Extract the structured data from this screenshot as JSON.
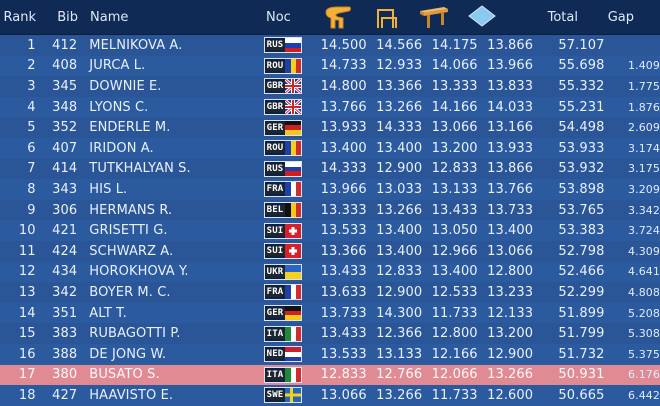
{
  "header": {
    "rank": "Rank",
    "bib": "Bib",
    "name": "Name",
    "noc": "Noc",
    "total": "Total",
    "gap": "Gap",
    "apparatus": [
      {
        "icon": "vault-icon"
      },
      {
        "icon": "uneven-bars-icon"
      },
      {
        "icon": "balance-beam-icon"
      },
      {
        "icon": "floor-exercise-icon"
      }
    ]
  },
  "rows": [
    {
      "rank": "1",
      "bib": "412",
      "name": "MELNIKOVA A.",
      "noc": "RUS",
      "s1": "14.500",
      "s2": "14.566",
      "s3": "14.175",
      "s4": "13.866",
      "total": "57.107",
      "gap": "",
      "flag": {
        "dir": "h",
        "colors": [
          "#ffffff",
          "#1c3fb0",
          "#d31c1c"
        ]
      }
    },
    {
      "rank": "2",
      "bib": "408",
      "name": "JURCA L.",
      "noc": "ROU",
      "s1": "14.733",
      "s2": "12.933",
      "s3": "14.066",
      "s4": "13.966",
      "total": "55.698",
      "gap": "1.409",
      "flag": {
        "dir": "v",
        "colors": [
          "#1f3fa8",
          "#f4d21b",
          "#d12c2c"
        ]
      }
    },
    {
      "rank": "3",
      "bib": "345",
      "name": "DOWNIE E.",
      "noc": "GBR",
      "s1": "14.800",
      "s2": "13.366",
      "s3": "13.333",
      "s4": "13.833",
      "total": "55.332",
      "gap": "1.775",
      "flag": {
        "dir": "uk",
        "colors": [
          "#1c3e8f",
          "#ffffff",
          "#d4222a"
        ]
      }
    },
    {
      "rank": "4",
      "bib": "348",
      "name": "LYONS C.",
      "noc": "GBR",
      "s1": "13.766",
      "s2": "13.266",
      "s3": "14.166",
      "s4": "14.033",
      "total": "55.231",
      "gap": "1.876",
      "flag": {
        "dir": "uk",
        "colors": [
          "#1c3e8f",
          "#ffffff",
          "#d4222a"
        ]
      }
    },
    {
      "rank": "5",
      "bib": "352",
      "name": "ENDERLE M.",
      "noc": "GER",
      "s1": "13.933",
      "s2": "14.333",
      "s3": "13.066",
      "s4": "13.166",
      "total": "54.498",
      "gap": "2.609",
      "flag": {
        "dir": "h",
        "colors": [
          "#111111",
          "#d21f1f",
          "#f3c915"
        ]
      }
    },
    {
      "rank": "6",
      "bib": "407",
      "name": "IRIDON A.",
      "noc": "ROU",
      "s1": "13.400",
      "s2": "13.400",
      "s3": "13.200",
      "s4": "13.933",
      "total": "53.933",
      "gap": "3.174",
      "flag": {
        "dir": "v",
        "colors": [
          "#1f3fa8",
          "#f4d21b",
          "#d12c2c"
        ]
      }
    },
    {
      "rank": "7",
      "bib": "414",
      "name": "TUTKHALYAN S.",
      "noc": "RUS",
      "s1": "14.333",
      "s2": "12.900",
      "s3": "12.833",
      "s4": "13.866",
      "total": "53.932",
      "gap": "3.175",
      "flag": {
        "dir": "h",
        "colors": [
          "#ffffff",
          "#1c3fb0",
          "#d31c1c"
        ]
      }
    },
    {
      "rank": "8",
      "bib": "343",
      "name": "HIS L.",
      "noc": "FRA",
      "s1": "13.966",
      "s2": "13.033",
      "s3": "13.133",
      "s4": "13.766",
      "total": "53.898",
      "gap": "3.209",
      "flag": {
        "dir": "v",
        "colors": [
          "#1f3fa8",
          "#ffffff",
          "#d12c2c"
        ]
      }
    },
    {
      "rank": "9",
      "bib": "306",
      "name": "HERMANS R.",
      "noc": "BEL",
      "s1": "13.333",
      "s2": "13.266",
      "s3": "13.433",
      "s4": "13.733",
      "total": "53.765",
      "gap": "3.342",
      "flag": {
        "dir": "v",
        "colors": [
          "#111111",
          "#f3c915",
          "#d12c2c"
        ]
      }
    },
    {
      "rank": "10",
      "bib": "421",
      "name": "GRISETTI G.",
      "noc": "SUI",
      "s1": "13.533",
      "s2": "13.400",
      "s3": "13.050",
      "s4": "13.400",
      "total": "53.383",
      "gap": "3.724",
      "flag": {
        "dir": "sui",
        "colors": [
          "#d6202a",
          "#ffffff"
        ]
      }
    },
    {
      "rank": "11",
      "bib": "424",
      "name": "SCHWARZ A.",
      "noc": "SUI",
      "s1": "13.366",
      "s2": "13.400",
      "s3": "12.966",
      "s4": "13.066",
      "total": "52.798",
      "gap": "4.309",
      "flag": {
        "dir": "sui",
        "colors": [
          "#d6202a",
          "#ffffff"
        ]
      }
    },
    {
      "rank": "12",
      "bib": "434",
      "name": "HOROKHOVA Y.",
      "noc": "UKR",
      "s1": "13.433",
      "s2": "12.833",
      "s3": "13.400",
      "s4": "12.800",
      "total": "52.466",
      "gap": "4.641",
      "flag": {
        "dir": "h",
        "colors": [
          "#2b64c8",
          "#f4d21b"
        ]
      }
    },
    {
      "rank": "13",
      "bib": "342",
      "name": "BOYER M. C.",
      "noc": "FRA",
      "s1": "13.633",
      "s2": "12.900",
      "s3": "12.533",
      "s4": "13.233",
      "total": "52.299",
      "gap": "4.808",
      "flag": {
        "dir": "v",
        "colors": [
          "#1f3fa8",
          "#ffffff",
          "#d12c2c"
        ]
      }
    },
    {
      "rank": "14",
      "bib": "351",
      "name": "ALT T.",
      "noc": "GER",
      "s1": "13.733",
      "s2": "14.300",
      "s3": "11.733",
      "s4": "12.133",
      "total": "51.899",
      "gap": "5.208",
      "flag": {
        "dir": "h",
        "colors": [
          "#111111",
          "#d21f1f",
          "#f3c915"
        ]
      }
    },
    {
      "rank": "15",
      "bib": "383",
      "name": "RUBAGOTTI P.",
      "noc": "ITA",
      "s1": "13.433",
      "s2": "12.366",
      "s3": "12.800",
      "s4": "13.200",
      "total": "51.799",
      "gap": "5.308",
      "flag": {
        "dir": "v",
        "colors": [
          "#1d8a3a",
          "#ffffff",
          "#d12c2c"
        ]
      }
    },
    {
      "rank": "16",
      "bib": "388",
      "name": "DE JONG W.",
      "noc": "NED",
      "s1": "13.533",
      "s2": "13.133",
      "s3": "12.166",
      "s4": "12.900",
      "total": "51.732",
      "gap": "5.375",
      "flag": {
        "dir": "h",
        "colors": [
          "#c8202c",
          "#ffffff",
          "#1f3fa8"
        ]
      }
    },
    {
      "rank": "17",
      "bib": "380",
      "name": "BUSATO S.",
      "noc": "ITA",
      "s1": "12.833",
      "s2": "12.766",
      "s3": "12.066",
      "s4": "13.266",
      "total": "50.931",
      "gap": "6.176",
      "highlight": true,
      "flag": {
        "dir": "v",
        "colors": [
          "#1d8a3a",
          "#ffffff",
          "#d12c2c"
        ]
      }
    },
    {
      "rank": "18",
      "bib": "427",
      "name": "HAAVISTO E.",
      "noc": "SWE",
      "s1": "13.066",
      "s2": "13.266",
      "s3": "11.733",
      "s4": "12.600",
      "total": "50.665",
      "gap": "6.442",
      "flag": {
        "dir": "swe",
        "colors": [
          "#2466b8",
          "#f4d21b"
        ]
      }
    }
  ]
}
